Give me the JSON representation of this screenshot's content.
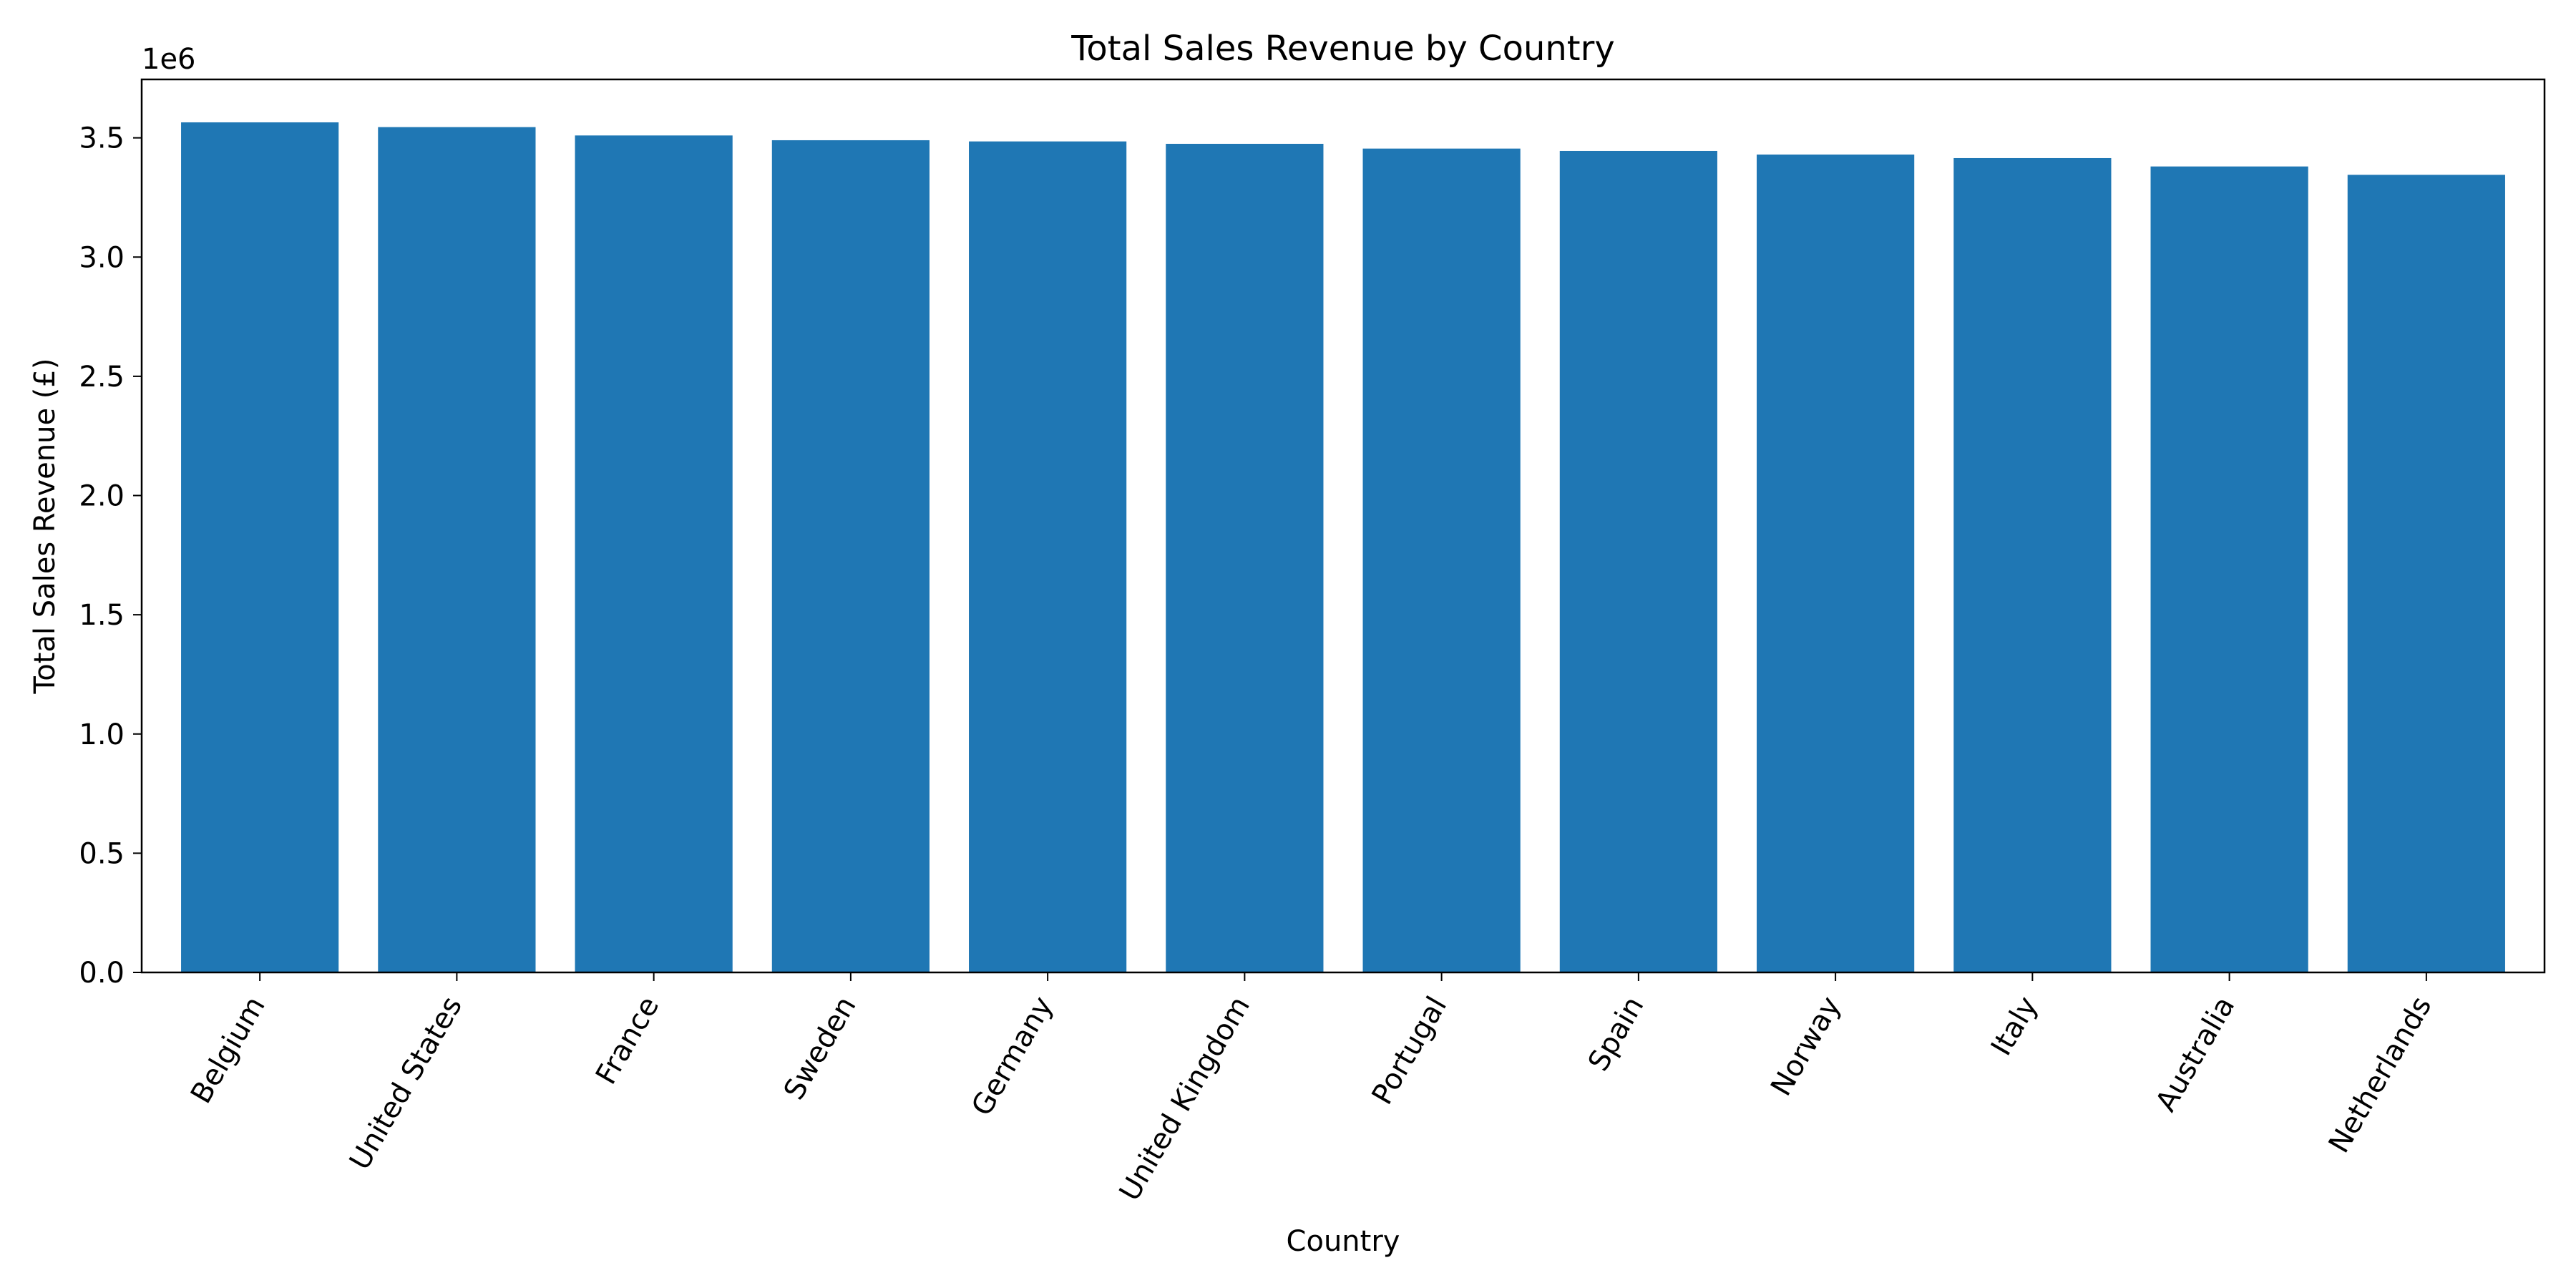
{
  "chart_data": {
    "type": "bar",
    "title": "Total Sales Revenue by Country",
    "xlabel": "Country",
    "ylabel": "Total Sales Revenue (£)",
    "offset_label": "1e6",
    "categories": [
      "Belgium",
      "United States",
      "France",
      "Sweden",
      "Germany",
      "United Kingdom",
      "Portugal",
      "Spain",
      "Norway",
      "Italy",
      "Australia",
      "Netherlands"
    ],
    "values": [
      3565000,
      3545000,
      3510000,
      3490000,
      3485000,
      3475000,
      3455000,
      3445000,
      3430000,
      3415000,
      3380000,
      3345000
    ],
    "ylim": [
      0,
      3745000
    ],
    "yticks": [
      0,
      500000,
      1000000,
      1500000,
      2000000,
      2500000,
      3000000,
      3500000
    ],
    "ytick_labels": [
      "0.0",
      "0.5",
      "1.0",
      "1.5",
      "2.0",
      "2.5",
      "3.0",
      "3.5"
    ],
    "grid": false,
    "legend": "none",
    "bar_color": "#1f77b4"
  }
}
